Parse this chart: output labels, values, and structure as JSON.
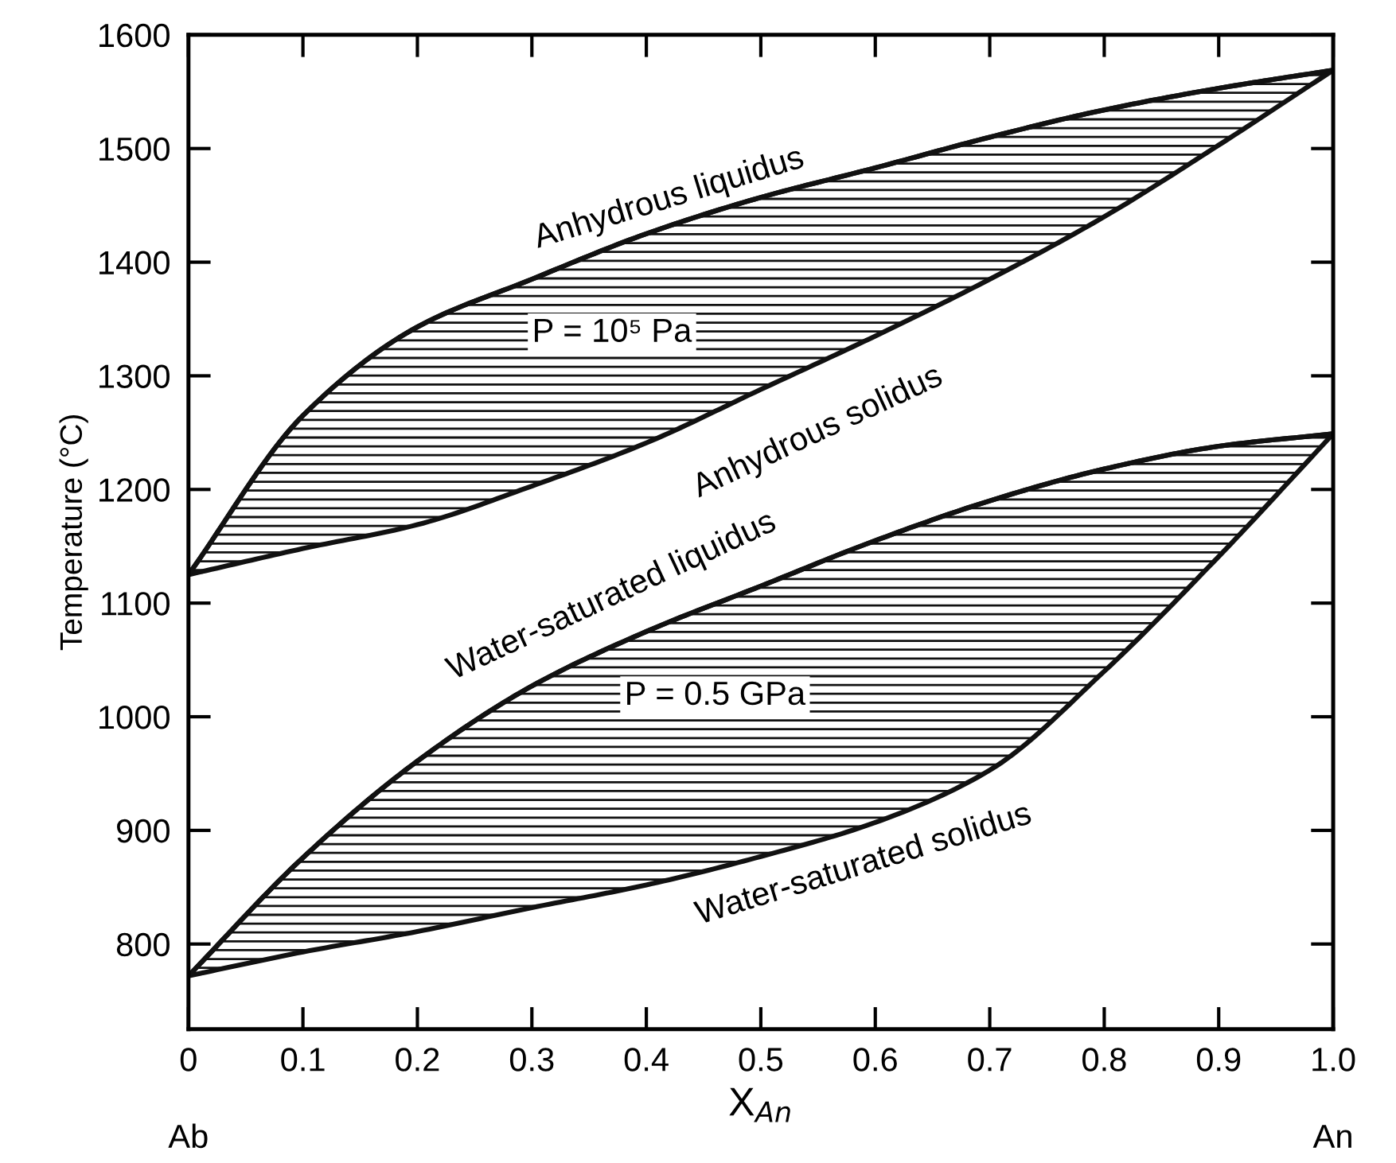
{
  "chart_data": {
    "type": "line",
    "ylabel": "Temperature (°C)",
    "xlabel": "X$_{An}$",
    "x": [
      0,
      0.1,
      0.2,
      0.3,
      0.4,
      0.5,
      0.6,
      0.7,
      0.8,
      0.9,
      1.0
    ],
    "series": [
      {
        "color": "#111111",
        "values": [
          1125,
          1265,
          1343,
          1385,
          1425,
          1457,
          1483,
          1510,
          1534,
          1553,
          1569
        ],
        "lower": [
          1125,
          1148,
          1169,
          1203,
          1241,
          1288,
          1335,
          1385,
          1440,
          1503,
          1569
        ],
        "upper": [
          1125,
          1265,
          1343,
          1385,
          1425,
          1457,
          1483,
          1510,
          1534,
          1553,
          1569
        ]
      },
      {
        "color": "#111111",
        "values": [
          772,
          876,
          961,
          1027,
          1075,
          1115,
          1155,
          1190,
          1218,
          1238,
          1249
        ],
        "lower": [
          772,
          793,
          811,
          832,
          852,
          877,
          907,
          953,
          1040,
          1141,
          1249
        ],
        "upper": [
          772,
          876,
          961,
          1027,
          1075,
          1115,
          1155,
          1190,
          1218,
          1238,
          1249
        ]
      }
    ],
    "annotations": [
      "Anhydrous liquidus",
      "Anhydrous solidus",
      "Water-saturated liquidus",
      "Water-saturated solidus",
      "P = 10⁵ Pa",
      "P = 0.5 GPa",
      "Ab",
      "An"
    ],
    "xlim": [
      0,
      1.0
    ],
    "ylim": [
      725,
      1600
    ],
    "xticks": [
      0,
      0.1,
      0.2,
      0.3,
      0.4,
      0.5,
      0.6,
      0.7,
      0.8,
      0.9,
      {
        "value": 1.0,
        "label": "1.0"
      }
    ],
    "yticks": [
      800,
      900,
      1000,
      1100,
      1200,
      1300,
      1400,
      1500,
      1600
    ],
    "grid": false,
    "legend": false,
    "marker": "none",
    "line_style": "solid"
  }
}
